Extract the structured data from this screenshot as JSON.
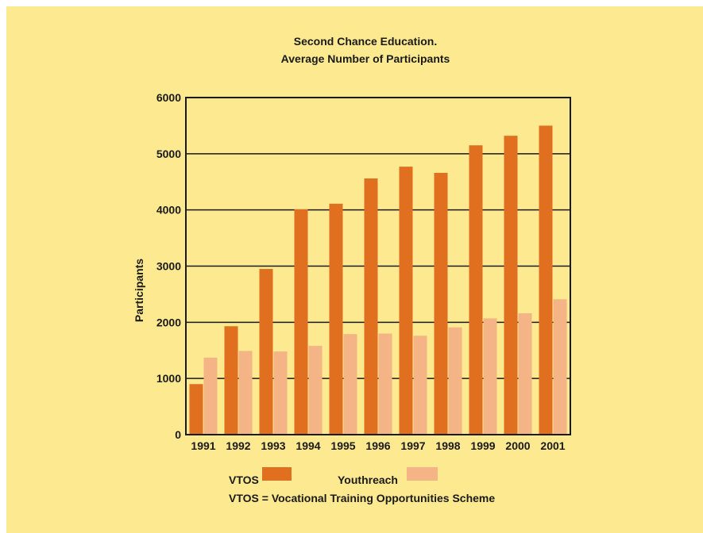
{
  "chart_data": {
    "type": "bar",
    "title": "Second Chance Education.",
    "subtitle": "Average Number of Participants",
    "xlabel": "",
    "ylabel": "Participants",
    "ylim": [
      0,
      6000
    ],
    "yticks": [
      "0",
      "1000",
      "2000",
      "3000",
      "4000",
      "5000",
      "6000"
    ],
    "categories": [
      "1991",
      "1992",
      "1993",
      "1994",
      "1995",
      "1996",
      "1997",
      "1998",
      "1999",
      "2000",
      "2001"
    ],
    "series": [
      {
        "name": "VTOS",
        "color": "#e07020",
        "values": [
          900,
          1930,
          2950,
          4010,
          4110,
          4560,
          4770,
          4660,
          5150,
          5320,
          5500
        ]
      },
      {
        "name": "Youthreach",
        "color": "#f4b486",
        "values": [
          1370,
          1490,
          1480,
          1580,
          1790,
          1800,
          1760,
          1910,
          2070,
          2160,
          2410
        ]
      }
    ],
    "grid": true,
    "legend_position": "bottom",
    "footnote": "VTOS = Vocational Training Opportunities Scheme"
  }
}
